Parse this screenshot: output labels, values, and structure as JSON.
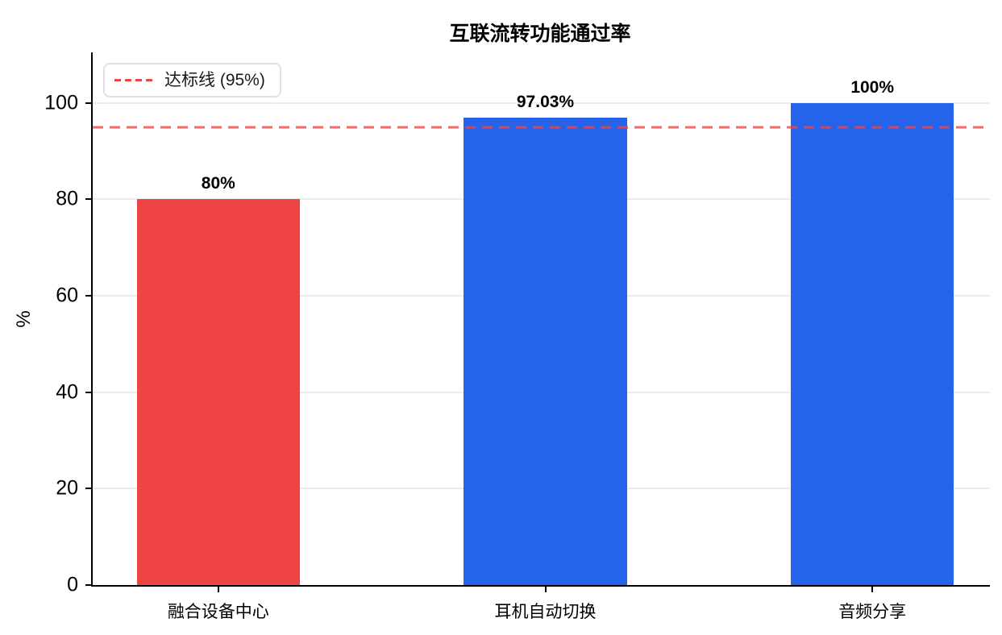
{
  "chart_data": {
    "type": "bar",
    "title": "互联流转功能通过率",
    "xlabel": "",
    "ylabel": "%",
    "categories": [
      "融合设备中心",
      "耳机自动切换",
      "音频分享"
    ],
    "values": [
      80,
      97.03,
      100
    ],
    "value_labels": [
      "80%",
      "97.03%",
      "100%"
    ],
    "bar_colors": [
      "#ef4444",
      "#2563eb",
      "#2563eb"
    ],
    "yticks": [
      0,
      20,
      40,
      60,
      80,
      100
    ],
    "ylim": [
      0,
      110.5
    ],
    "grid": true,
    "grid_color": "#ececec",
    "threshold": {
      "value": 95,
      "label": "达标线 (95%)",
      "color": "#ef4444",
      "style": "dashed"
    },
    "legend_position": "upper-left"
  }
}
